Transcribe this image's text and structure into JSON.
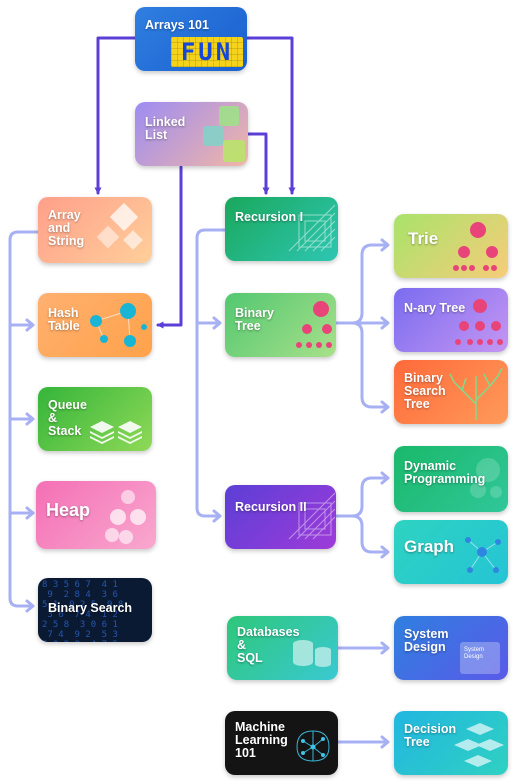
{
  "nodes": {
    "arrays101": {
      "label": "Arrays 101",
      "badge": "FUN"
    },
    "linked_list": {
      "label": "Linked\nList"
    },
    "array_and_string": {
      "label": "Array\nand\nString"
    },
    "hash_table": {
      "label": "Hash\nTable"
    },
    "queue_stack": {
      "label": "Queue\n&\nStack"
    },
    "heap": {
      "label": "Heap"
    },
    "binary_search": {
      "label": "Binary Search"
    },
    "recursion1": {
      "label": "Recursion I"
    },
    "binary_tree": {
      "label": "Binary\nTree"
    },
    "recursion2": {
      "label": "Recursion II"
    },
    "trie": {
      "label": "Trie"
    },
    "nary_tree": {
      "label": "N-ary Tree"
    },
    "bst": {
      "label": "Binary\nSearch\nTree"
    },
    "dynamic_programming": {
      "label": "Dynamic\nProgramming"
    },
    "graph": {
      "label": "Graph"
    },
    "databases_sql": {
      "label": "Databases\n&\nSQL"
    },
    "system_design": {
      "label": "System\nDesign",
      "inner_label": "System\nDesign"
    },
    "ml101": {
      "label": "Machine\nLearning\n101"
    },
    "decision_tree": {
      "label": "Decision\nTree"
    }
  },
  "colors": {
    "arrow": "#5b3fd6",
    "branch": "#a8b0f4"
  },
  "matrix_text": "8 3 5 6 7  4 1\n 9  2 8 4  3 6\n5 1  0 2 5  9 8\n 3 6  7 4  1 2\n2 5 8  3 0 6 1\n 7 4  9 2  5 3\n6 0 2 8  4 7 5"
}
